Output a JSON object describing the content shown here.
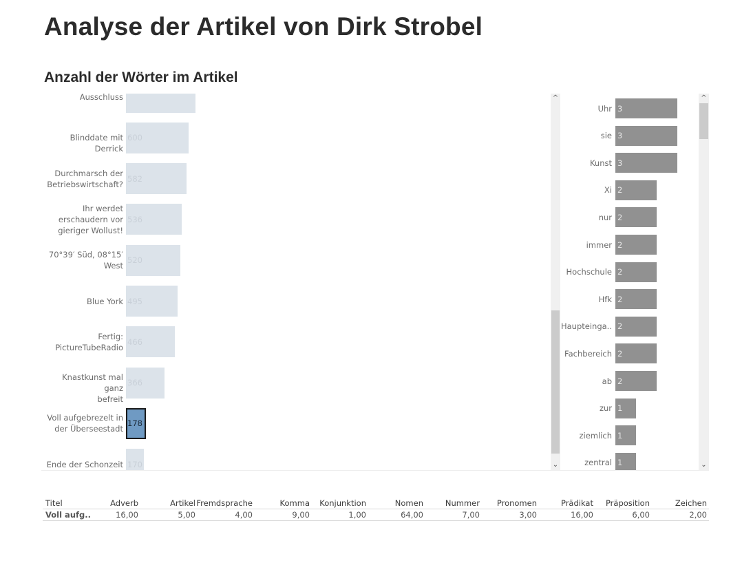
{
  "page": {
    "title": "Analyse der Artikel von Dirk Strobel",
    "subtitle": "Anzahl der Wörter im Artikel"
  },
  "colors": {
    "bar_default": "#dce3ea",
    "bar_label_default": "#c9d0d8",
    "bar_selected": "#6f9ac3",
    "bar_selected_border": "#1a1a1a",
    "bar_selected_label": "#1a2a3a",
    "word_bar": "#919191",
    "word_bar_label": "#e6e6e6"
  },
  "chart_data": [
    {
      "type": "bar",
      "orientation": "horizontal",
      "title": "Anzahl der Wörter im Artikel",
      "categories": [
        "Ausschluss",
        "Blinddate mit Derrick",
        "Durchmarsch der Betriebswirtschaft?",
        "Ihr werdet erschaudern vor gieriger Wollust!",
        "70°39′ Süd, 08°15′ West",
        "Blue York",
        "Fertig: PictureTubeRadio",
        "Knastkunst mal ganz befreit",
        "Voll aufgebrezelt in der Überseestadt",
        "Ende der Schonzeit"
      ],
      "category_lines": [
        [
          "Ausschluss"
        ],
        [
          "Blinddate mit Derrick"
        ],
        [
          "Durchmarsch der",
          "Betriebswirtschaft?"
        ],
        [
          "Ihr werdet",
          "erschaudern vor",
          "gieriger Wollust!"
        ],
        [
          "70°39′ Süd, 08°15′",
          "West"
        ],
        [
          "Blue York"
        ],
        [
          "Fertig:",
          "PictureTubeRadio"
        ],
        [
          "Knastkunst mal ganz",
          "befreit"
        ],
        [
          "Voll aufgebrezelt in",
          "der Überseestadt"
        ],
        [
          "Ende der Schonzeit"
        ]
      ],
      "values": [
        665,
        600,
        582,
        536,
        520,
        495,
        466,
        366,
        178,
        170
      ],
      "value_labels": [
        "",
        "600",
        "582",
        "536",
        "520",
        "495",
        "466",
        "366",
        "178",
        "170"
      ],
      "selected_index": 8,
      "xlim": [
        0,
        4850
      ],
      "scrollbar": {
        "position_fraction": 0.58,
        "visible_fraction": 0.4
      }
    },
    {
      "type": "bar",
      "orientation": "horizontal",
      "title": "",
      "categories": [
        "Uhr",
        "sie",
        "Kunst",
        "Xi",
        "nur",
        "immer",
        "Hochschule",
        "Hfk",
        "Haupteinga..",
        "Fachbereich",
        "ab",
        "zur",
        "ziemlich",
        "zentral"
      ],
      "values": [
        3,
        3,
        3,
        2,
        2,
        2,
        2,
        2,
        2,
        2,
        2,
        1,
        1,
        1
      ],
      "value_labels": [
        "3",
        "3",
        "3",
        "2",
        "2",
        "2",
        "2",
        "2",
        "2",
        "2",
        "2",
        "1",
        "1",
        "1"
      ],
      "xlim": [
        0,
        3.6
      ],
      "scrollbar": {
        "position_fraction": 0.0,
        "visible_fraction": 0.1
      }
    }
  ],
  "table": {
    "headers": [
      "Titel",
      "Adverb",
      "Artikel",
      "Fremdsprache",
      "Komma",
      "Konjunktion",
      "Nomen",
      "Nummer",
      "Pronomen",
      "Prädikat",
      "Präposition",
      "Zeichen"
    ],
    "rows": [
      [
        "Voll aufg..",
        "16,00",
        "5,00",
        "4,00",
        "9,00",
        "1,00",
        "64,00",
        "7,00",
        "3,00",
        "16,00",
        "6,00",
        "2,00"
      ]
    ]
  },
  "icons": {
    "scroll_up": "^",
    "scroll_down": "⌄"
  }
}
